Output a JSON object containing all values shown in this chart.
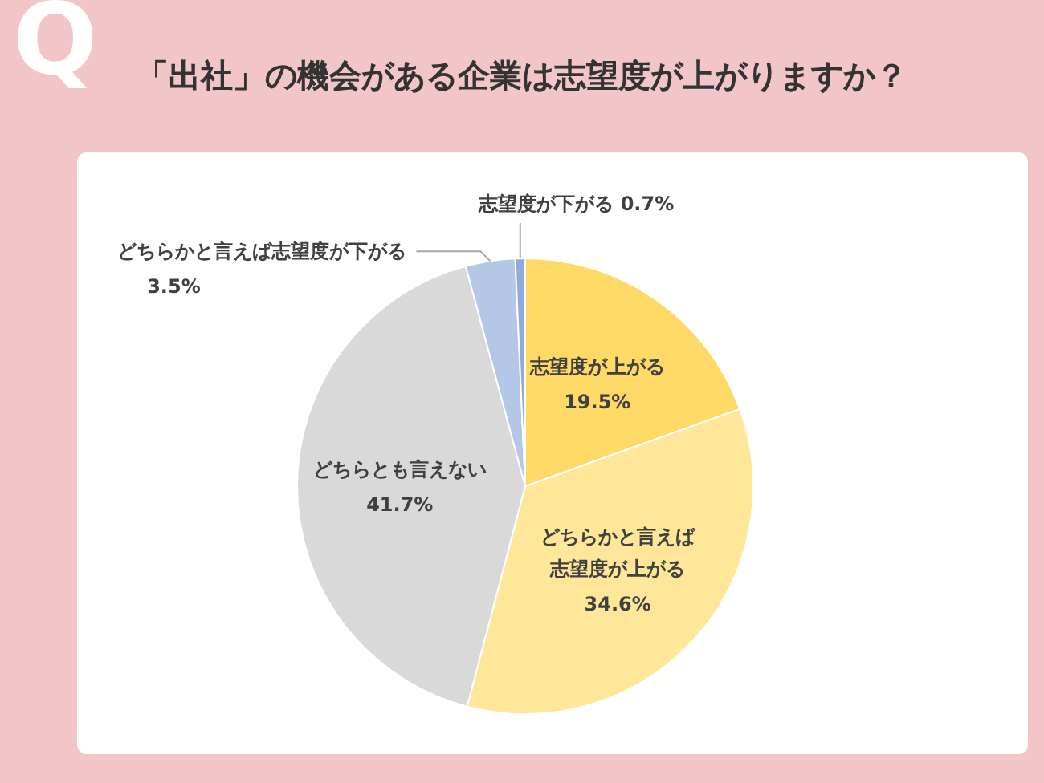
{
  "chart_data": {
    "type": "pie",
    "title": "「出社」の機会がある企業は志望度が上がりますか？",
    "categories": [
      "志望度が上がる",
      "どちらかと言えば志望度が上がる",
      "どちらとも言えない",
      "どちらかと言えば志望度が下がる",
      "志望度が下がる"
    ],
    "values": [
      19.5,
      34.6,
      41.7,
      3.5,
      0.7
    ],
    "colors": [
      "#ffd966",
      "#ffe699",
      "#d9d9d9",
      "#b4c7e7",
      "#8faadc"
    ],
    "value_labels": [
      "19.5%",
      "34.6%",
      "41.7%",
      "3.5%",
      "0.7%"
    ],
    "annotations": [
      "Q"
    ]
  }
}
